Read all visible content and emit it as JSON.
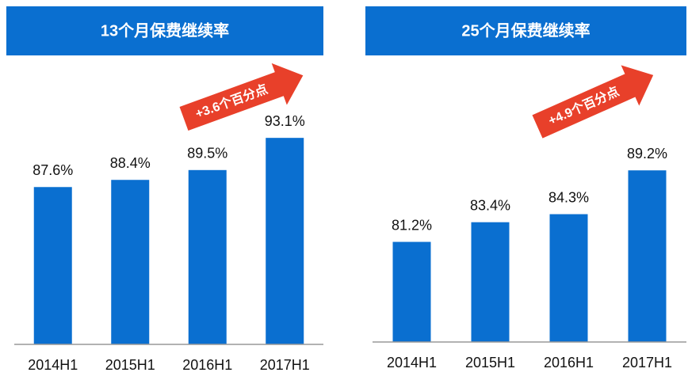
{
  "chart_data": [
    {
      "type": "bar",
      "title": "13个月保费继续率",
      "categories": [
        "2014H1",
        "2015H1",
        "2016H1",
        "2017H1"
      ],
      "values": [
        87.6,
        88.4,
        89.5,
        93.1
      ],
      "value_labels": [
        "87.6%",
        "88.4%",
        "89.5%",
        "93.1%"
      ],
      "color": "#0a6fd0",
      "ylim": [
        70,
        94
      ],
      "annotation": "+3.6个百分点"
    },
    {
      "type": "bar",
      "title": "25个月保费继续率",
      "categories": [
        "2014H1",
        "2015H1",
        "2016H1",
        "2017H1"
      ],
      "values": [
        81.2,
        83.4,
        84.3,
        89.2
      ],
      "value_labels": [
        "81.2%",
        "83.4%",
        "84.3%",
        "89.2%"
      ],
      "color": "#0a6fd0",
      "ylim": [
        70,
        94
      ],
      "annotation": "+4.9个百分点"
    }
  ]
}
